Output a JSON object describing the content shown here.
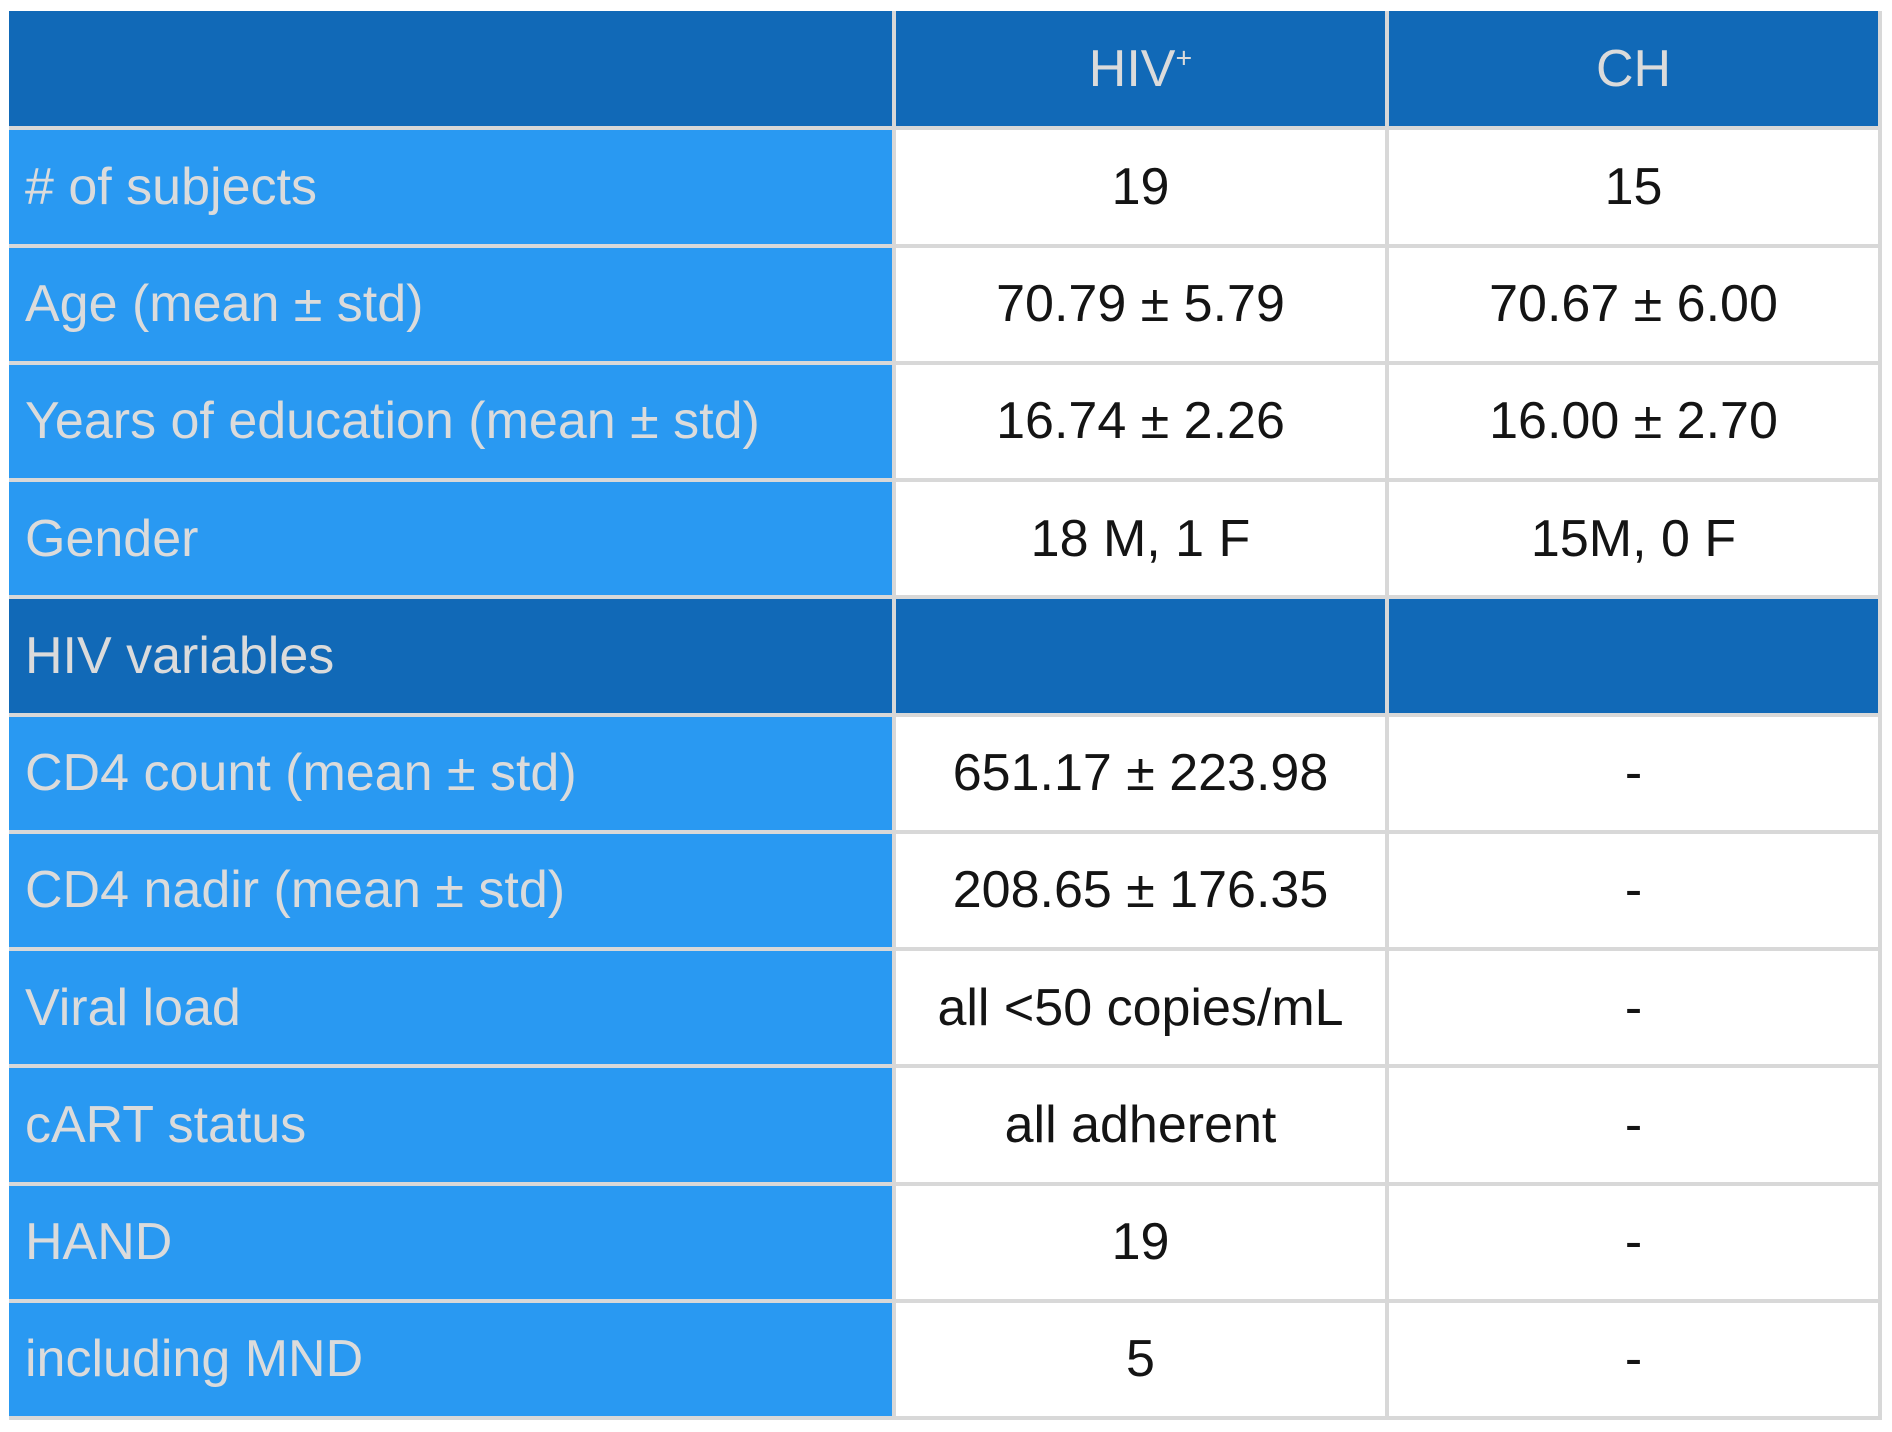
{
  "colors": {
    "header_bg": "#1169B7",
    "label_bg": "#2999F2",
    "grid": "#D8D8D8",
    "label_text": "#DBDBDB",
    "value_text": "#141414",
    "page_bg": "#FFFFFF"
  },
  "header": {
    "corner": "",
    "hiv": {
      "text": "HIV",
      "sup": "+"
    },
    "ch": {
      "text": "CH"
    }
  },
  "rows": [
    {
      "type": "data",
      "label": "# of subjects",
      "hiv": "19",
      "ch": "15"
    },
    {
      "type": "data",
      "label": "Age (mean ± std)",
      "hiv": "70.79 ± 5.79",
      "ch": "70.67 ± 6.00"
    },
    {
      "type": "data",
      "label": "Years of education (mean ± std)",
      "hiv": "16.74 ± 2.26",
      "ch": "16.00 ± 2.70"
    },
    {
      "type": "data",
      "label": "Gender",
      "hiv": "18 M, 1 F",
      "ch": "15M, 0 F"
    },
    {
      "type": "section",
      "label": "HIV variables",
      "hiv": "",
      "ch": ""
    },
    {
      "type": "data",
      "label": "CD4 count (mean ± std)",
      "hiv": "651.17 ± 223.98",
      "ch": "-"
    },
    {
      "type": "data",
      "label": "CD4 nadir (mean ± std)",
      "hiv": "208.65 ± 176.35",
      "ch": "-"
    },
    {
      "type": "data",
      "label": "Viral load",
      "hiv": "all <50 copies/mL",
      "ch": "-"
    },
    {
      "type": "data",
      "label": "cART status",
      "hiv": "all adherent",
      "ch": "-"
    },
    {
      "type": "data",
      "label": "HAND",
      "hiv": "19",
      "ch": "-"
    },
    {
      "type": "data",
      "label": "including MND",
      "hiv": "5",
      "ch": "-"
    }
  ]
}
